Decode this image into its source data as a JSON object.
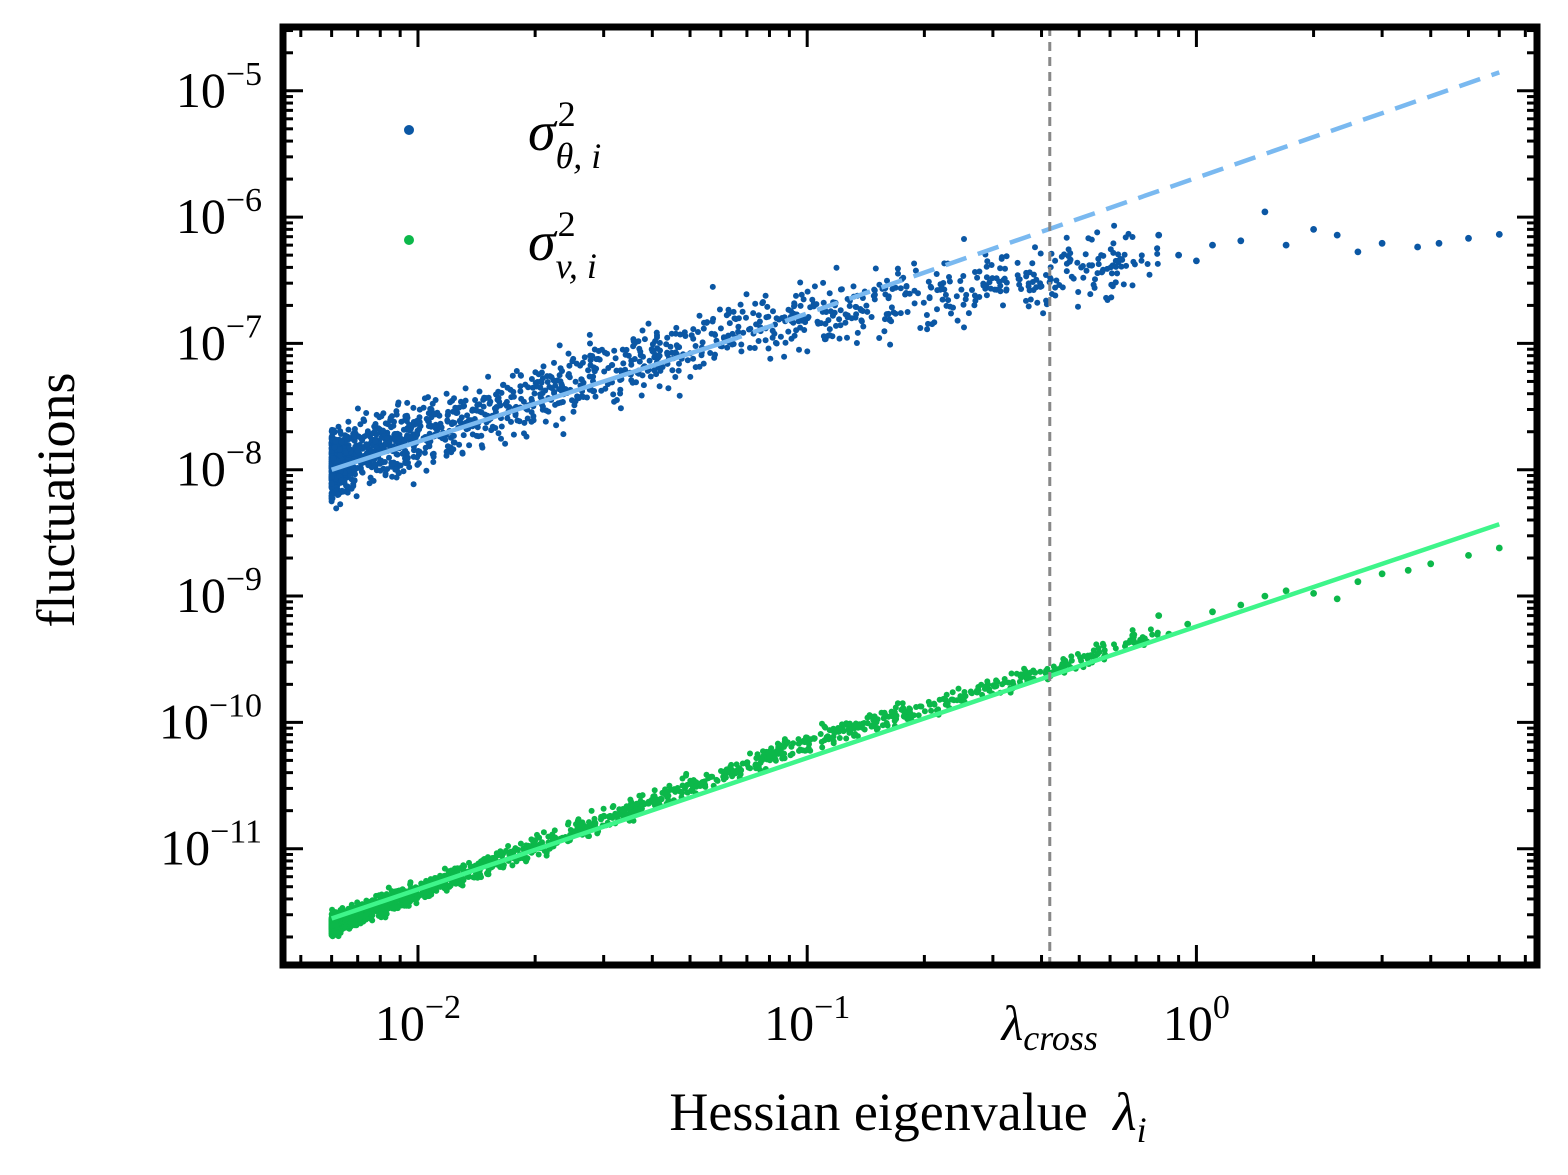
{
  "chart_data": {
    "type": "scatter",
    "xlabel": "Hessian eigenvalue",
    "xlabel_symbol": "λ",
    "xlabel_symbol_sub": "i",
    "ylabel": "fluctuations",
    "xscale": "log",
    "yscale": "log",
    "xlim": [
      0.0045,
      7.5
    ],
    "ylim": [
      1.2e-12,
      3.2e-05
    ],
    "x_ticks": [
      {
        "value": 0.01,
        "base": "10",
        "exp": "−2"
      },
      {
        "value": 0.1,
        "base": "10",
        "exp": "−1"
      },
      {
        "value": 1,
        "base": "10",
        "exp": "0"
      }
    ],
    "y_ticks": [
      {
        "value": 1e-05,
        "base": "10",
        "exp": "−5"
      },
      {
        "value": 1e-06,
        "base": "10",
        "exp": "−6"
      },
      {
        "value": 1e-07,
        "base": "10",
        "exp": "−7"
      },
      {
        "value": 1e-08,
        "base": "10",
        "exp": "−8"
      },
      {
        "value": 1e-09,
        "base": "10",
        "exp": "−9"
      },
      {
        "value": 1e-10,
        "base": "10",
        "exp": "−10"
      },
      {
        "value": 1e-11,
        "base": "10",
        "exp": "−11"
      }
    ],
    "vline": {
      "x": 0.42,
      "label": "λ",
      "label_sub": "cross",
      "color": "#888888",
      "style": "dashed"
    },
    "legend_position": "upper-left",
    "series": [
      {
        "name": "σ",
        "name_sup": "2",
        "name_sub": "θ, i",
        "color": "#0b57a4",
        "kind": "scatter",
        "x_range": [
          0.006,
          6.0
        ],
        "trend": {
          "x": [
            0.006,
            0.07,
            0.42,
            1.5,
            6.0
          ],
          "y": [
            1.1e-08,
            1.4e-07,
            3.5e-07,
            5.5e-07,
            7e-07
          ]
        },
        "spread_decades": 0.15,
        "sparse_points": {
          "x": [
            0.8,
            0.9,
            1.0,
            1.1,
            1.3,
            1.5,
            1.7,
            2.0,
            2.3,
            2.6,
            3.0,
            3.7,
            4.2,
            5.0,
            6.0
          ],
          "y": [
            7.2e-07,
            5e-07,
            4.5e-07,
            6e-07,
            6.5e-07,
            1.1e-06,
            6e-07,
            8e-07,
            7.2e-07,
            5.3e-07,
            6.2e-07,
            5.8e-07,
            6.2e-07,
            6.8e-07,
            7.3e-07
          ]
        }
      },
      {
        "name": "σ",
        "name_sup": "2",
        "name_sub": "v, i",
        "color": "#0cb84a",
        "kind": "scatter",
        "x_range": [
          0.006,
          6.0
        ],
        "trend": {
          "x": [
            0.006,
            0.1,
            0.42,
            1.0,
            6.0
          ],
          "y": [
            2.5e-12,
            7e-11,
            2.6e-10,
            6.5e-10,
            2.4e-09
          ]
        },
        "spread_decades": 0.04,
        "sparse_points": {
          "x": [
            0.8,
            0.85,
            0.95,
            1.1,
            1.3,
            1.5,
            1.7,
            2.0,
            2.3,
            2.6,
            3.0,
            3.5,
            4.0,
            5.0,
            6.0
          ],
          "y": [
            7e-10,
            5e-10,
            6e-10,
            7.5e-10,
            8.5e-10,
            1e-09,
            1.1e-09,
            1.05e-09,
            9.5e-10,
            1.3e-09,
            1.5e-09,
            1.6e-09,
            1.8e-09,
            2.1e-09,
            2.4e-09
          ]
        }
      }
    ],
    "fit_lines": [
      {
        "color": "#7ab9f0",
        "style": "solid",
        "x": [
          0.006,
          0.06
        ],
        "y": [
          1e-08,
          1e-07
        ]
      },
      {
        "color": "#7ab9f0",
        "style": "dashed",
        "x": [
          0.06,
          6.0
        ],
        "y": [
          1e-07,
          1.4e-05
        ]
      },
      {
        "color": "#3ef58a",
        "style": "solid",
        "x": [
          0.006,
          6.0
        ],
        "y": [
          2.8e-12,
          3.7e-09
        ]
      }
    ]
  }
}
